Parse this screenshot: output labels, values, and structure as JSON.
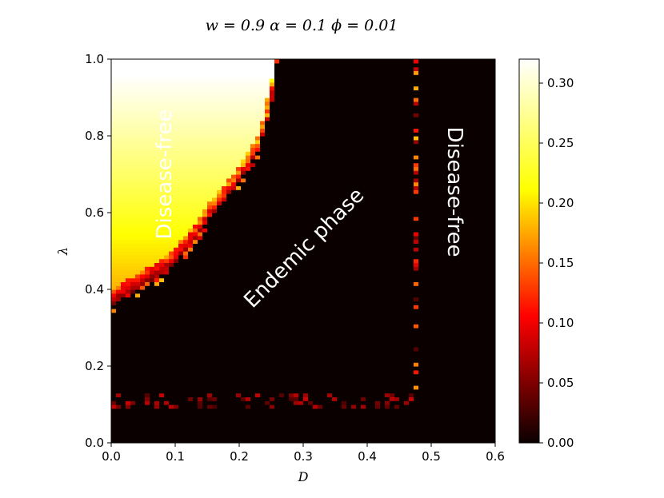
{
  "chart_data": {
    "type": "heatmap",
    "title": "w = 0.9 α = 0.1 ϕ = 0.01",
    "xlabel": "D",
    "ylabel": "λ",
    "xlim": [
      0.0,
      0.6
    ],
    "ylim": [
      0.0,
      1.0
    ],
    "x_ticks": [
      "0.0",
      "0.1",
      "0.2",
      "0.3",
      "0.4",
      "0.5",
      "0.6"
    ],
    "y_ticks": [
      "0.0",
      "0.2",
      "0.4",
      "0.6",
      "0.8",
      "1.0"
    ],
    "colormap": "hot",
    "colorbar": {
      "range": [
        0.0,
        0.32
      ],
      "ticks": [
        "0.00",
        "0.05",
        "0.10",
        "0.15",
        "0.20",
        "0.25",
        "0.30"
      ]
    },
    "grid": false,
    "phase_boundaries": {
      "lambda_threshold_at_D": [
        [
          0.0,
          0.36
        ],
        [
          0.02,
          0.38
        ],
        [
          0.05,
          0.41
        ],
        [
          0.08,
          0.44
        ],
        [
          0.1,
          0.47
        ],
        [
          0.13,
          0.53
        ],
        [
          0.16,
          0.6
        ],
        [
          0.19,
          0.66
        ],
        [
          0.21,
          0.71
        ],
        [
          0.23,
          0.76
        ],
        [
          0.24,
          0.83
        ],
        [
          0.25,
          0.9
        ],
        [
          0.255,
          0.96
        ],
        [
          0.26,
          1.0
        ]
      ],
      "lower_lambda_threshold": 0.11,
      "upper_D_threshold": 0.47
    },
    "annotations": [
      {
        "text": "Disease-free",
        "region": "upper-left"
      },
      {
        "text": "Endemic phase",
        "region": "center"
      },
      {
        "text": "Disease-free",
        "region": "right"
      }
    ]
  }
}
